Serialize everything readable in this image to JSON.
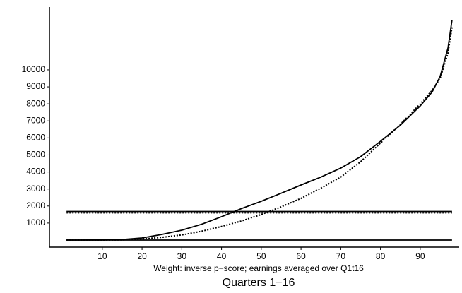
{
  "chart_data": {
    "type": "line",
    "title": "Quarters 1−16",
    "x_label": "Weight: inverse p−score; earnings averaged over Q1t16",
    "xlim": [
      -3.3,
      99.8
    ],
    "ylim": [
      -415,
      13690
    ],
    "xticks": [
      10,
      20,
      30,
      40,
      50,
      60,
      70,
      80,
      90
    ],
    "yticks": [
      1000,
      2000,
      3000,
      4000,
      5000,
      6000,
      7000,
      8000,
      9000,
      10000
    ],
    "series": [
      {
        "color": "#000000",
        "line_style": "solid",
        "x": [
          1,
          5,
          10,
          15,
          20,
          25,
          30,
          35,
          40,
          45,
          50,
          55,
          60,
          65,
          70,
          75,
          80,
          85,
          90,
          93,
          95,
          97,
          98
        ],
        "values": [
          0,
          0,
          5,
          30,
          125,
          330,
          580,
          930,
          1370,
          1850,
          2280,
          2750,
          3235,
          3700,
          4230,
          4900,
          5800,
          6750,
          7880,
          8700,
          9600,
          11300,
          12940
        ]
      },
      {
        "color": "#000000",
        "line_style": "dotted",
        "x": [
          1,
          5,
          10,
          15,
          20,
          25,
          30,
          35,
          40,
          45,
          50,
          55,
          60,
          65,
          70,
          75,
          80,
          85,
          90,
          93,
          95,
          97,
          98
        ],
        "values": [
          0,
          0,
          0,
          10,
          60,
          160,
          300,
          520,
          800,
          1120,
          1500,
          1950,
          2450,
          3050,
          3700,
          4600,
          5700,
          6800,
          8000,
          8800,
          9500,
          11000,
          12500
        ]
      },
      {
        "color": "#000000",
        "line_style": "solid",
        "x": [
          1,
          98
        ],
        "values": [
          1680,
          1680
        ]
      },
      {
        "color": "#000000",
        "line_style": "dotted",
        "x": [
          1,
          98
        ],
        "values": [
          1600,
          1600
        ]
      },
      {
        "color": "#000000",
        "line_style": "solid",
        "x": [
          1,
          98
        ],
        "values": [
          0,
          0
        ]
      }
    ]
  }
}
